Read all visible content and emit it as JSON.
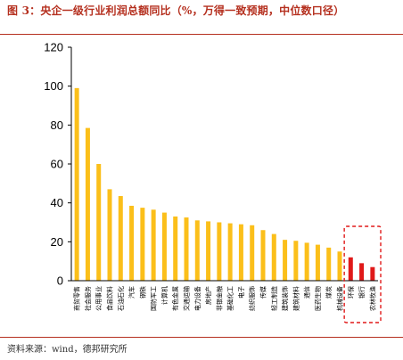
{
  "title": "图 3：央企一级行业利润总额同比（%，万得一致预期，中位数口径）",
  "source": "资料来源：wind，德邦研究所",
  "colors": {
    "bar": "#fbbf1a",
    "highlight": "#e01919",
    "box": "#e01919",
    "axis": "#000000"
  },
  "chart_data": {
    "type": "bar",
    "title": "图 3：央企一级行业利润总额同比（%，万得一致预期，中位数口径）",
    "xlabel": "",
    "ylabel": "",
    "ylim": [
      0,
      120
    ],
    "yticks": [
      0,
      20,
      40,
      60,
      80,
      100,
      120
    ],
    "grid": false,
    "categories": [
      "商贸零售",
      "社会服务",
      "公用事业",
      "食品饮料",
      "石油石化",
      "汽车",
      "钢铁",
      "国防军工",
      "计算机",
      "有色金属",
      "交通运输",
      "电力设备",
      "房地产",
      "非银金融",
      "基础化工",
      "电子",
      "纺织服饰",
      "传媒",
      "轻工制造",
      "建筑装饰",
      "建筑材料",
      "通信",
      "医药生物",
      "煤炭",
      "机械设备",
      "环保",
      "银行",
      "农林牧渔"
    ],
    "values": [
      99,
      78.5,
      60,
      47,
      43.5,
      38.5,
      37.5,
      36.5,
      35,
      33,
      32.5,
      31,
      30.5,
      30,
      29.5,
      29,
      28.5,
      26,
      24,
      21,
      20.5,
      19.5,
      18.5,
      17,
      15,
      12,
      9,
      7
    ],
    "highlight_categories": [
      "环保",
      "银行",
      "农林牧渔"
    ]
  }
}
